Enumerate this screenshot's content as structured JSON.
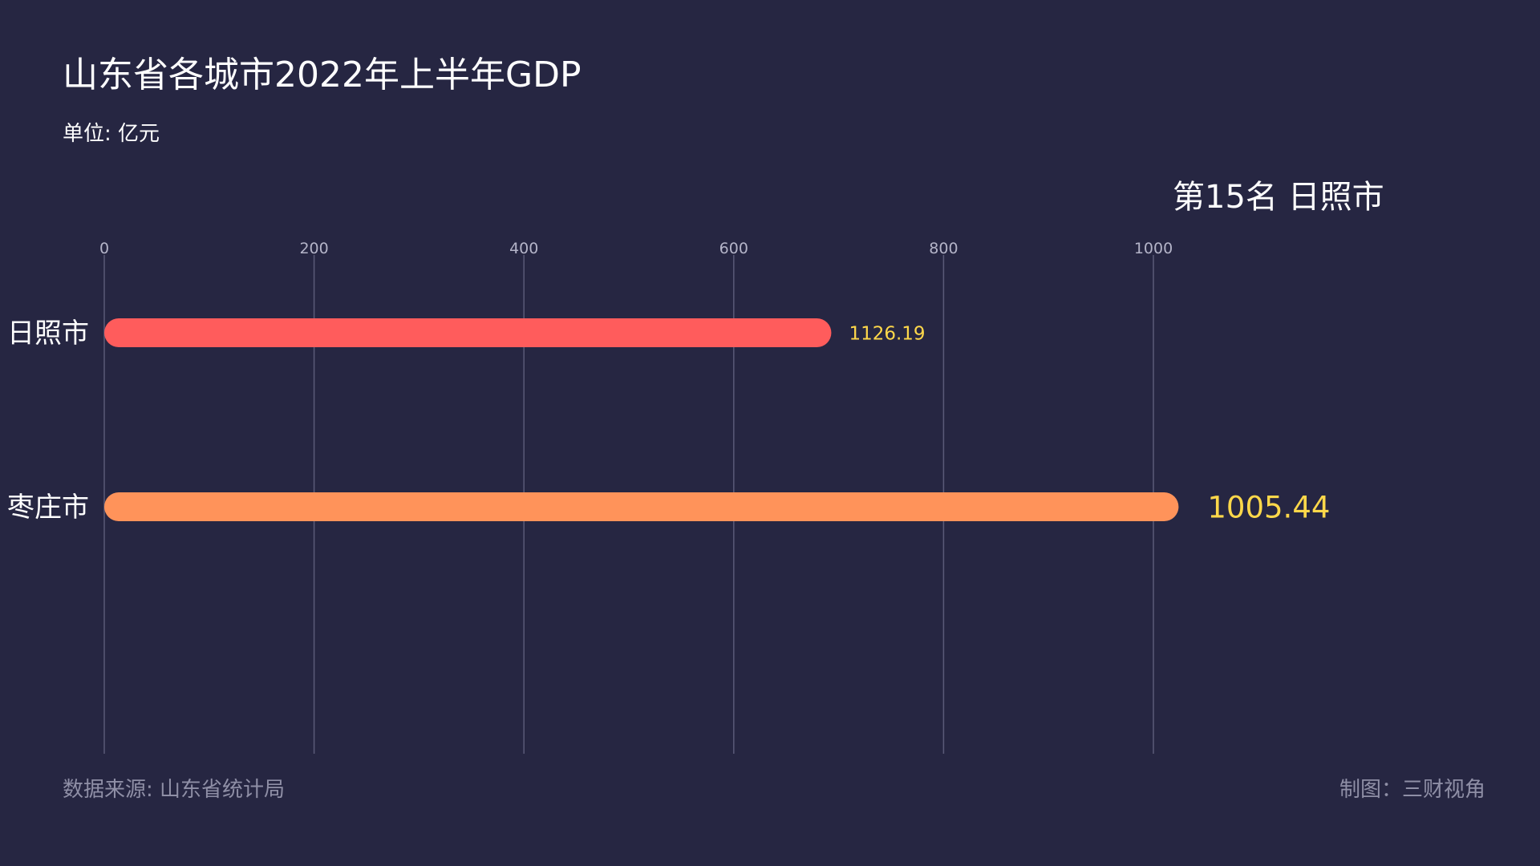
{
  "header": {
    "title": "山东省各城市2022年上半年GDP",
    "unit": "单位: 亿元"
  },
  "rank_label": "第15名 日照市",
  "footer": {
    "source": "数据来源: 山东省统计局",
    "credit": "制图：三财视角"
  },
  "chart_data": {
    "type": "bar",
    "orientation": "horizontal",
    "categories": [
      "日照市",
      "枣庄市"
    ],
    "values": [
      1126.19,
      1005.44
    ],
    "value_labels": [
      "1126.19",
      "1005.44"
    ],
    "bar_lengths": [
      693,
      1024
    ],
    "xlim": [
      0,
      1000
    ],
    "xticks": [
      0,
      200,
      400,
      600,
      800,
      1000
    ],
    "grid": true,
    "colors": [
      "#ff5c5c",
      "#ff935a"
    ],
    "value_label_color": "#ffd84a"
  }
}
